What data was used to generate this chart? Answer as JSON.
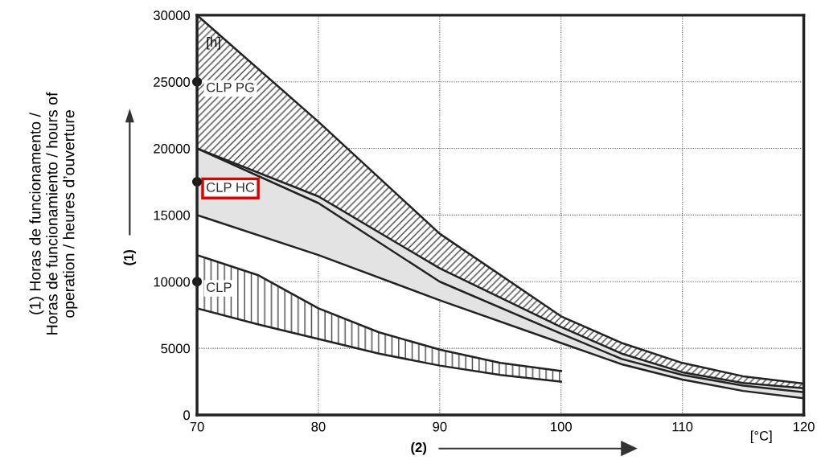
{
  "chart_data": {
    "type": "line",
    "ylabel": "(1) Horas de funcionamento /\nHoras de funcionamiento / hours of\noperation / heures d’ouverture",
    "annotations": [
      "[h]",
      "[°C]",
      "(1)",
      "(2)"
    ],
    "xlim": [
      70,
      120
    ],
    "xticks": [
      70,
      80,
      90,
      100,
      110,
      120
    ],
    "ylim": [
      0,
      30000
    ],
    "yticks": [
      0,
      5000,
      10000,
      15000,
      20000,
      25000,
      30000
    ],
    "grid": true,
    "legend": false,
    "series": [
      {
        "name": "CLP PG",
        "color": "#222222",
        "x": [
          70,
          80,
          90,
          100,
          105,
          110,
          115,
          120
        ],
        "values": [
          30000,
          22000,
          13600,
          7400,
          5400,
          3900,
          2900,
          2350
        ],
        "upper": [
          30000,
          22000,
          13600,
          7400,
          5400,
          3900,
          2900,
          2350
        ],
        "lower": [
          20000,
          15900,
          10000,
          6100,
          4200,
          3000,
          2200,
          1700
        ]
      },
      {
        "name": "CLP HC",
        "color": "#222222",
        "x": [
          70,
          80,
          90,
          100,
          105,
          110,
          115,
          120
        ],
        "values": [
          20000,
          16400,
          11000,
          6600,
          4600,
          3200,
          2400,
          2000
        ],
        "upper": [
          20000,
          16400,
          11000,
          6600,
          4600,
          3200,
          2400,
          2000
        ],
        "lower": [
          15000,
          12000,
          8600,
          5400,
          3800,
          2650,
          1800,
          1250
        ]
      },
      {
        "name": "CLP",
        "color": "#222222",
        "x": [
          70,
          75,
          80,
          85,
          90,
          95,
          100
        ],
        "values": [
          12000,
          10500,
          8000,
          6200,
          4900,
          3900,
          3300
        ],
        "upper": [
          12000,
          10500,
          8000,
          6200,
          4900,
          3900,
          3300
        ],
        "lower": [
          8000,
          6800,
          5700,
          4600,
          3700,
          3000,
          2500
        ]
      },
      {
        "color": "#222222",
        "x": [
          70,
          80,
          90,
          100,
          105,
          110,
          115,
          120
        ],
        "values": [
          20000,
          15900,
          10000,
          6100,
          4200,
          3000,
          2200,
          1700
        ]
      },
      {
        "color": "#222222",
        "x": [
          70,
          80,
          90,
          100,
          105,
          110,
          115,
          120
        ],
        "values": [
          15000,
          12000,
          8600,
          5400,
          3800,
          2650,
          1800,
          1250
        ]
      },
      {
        "color": "#222222",
        "x": [
          70,
          75,
          80,
          85,
          90,
          95,
          100
        ],
        "values": [
          8000,
          6800,
          5700,
          4600,
          3700,
          3000,
          2500
        ]
      },
      {
        "type": "scatter",
        "color": "#1a1a1a",
        "marker": "circle",
        "x": [
          70,
          70,
          70
        ],
        "values": [
          25000,
          17500,
          10000
        ]
      }
    ]
  }
}
